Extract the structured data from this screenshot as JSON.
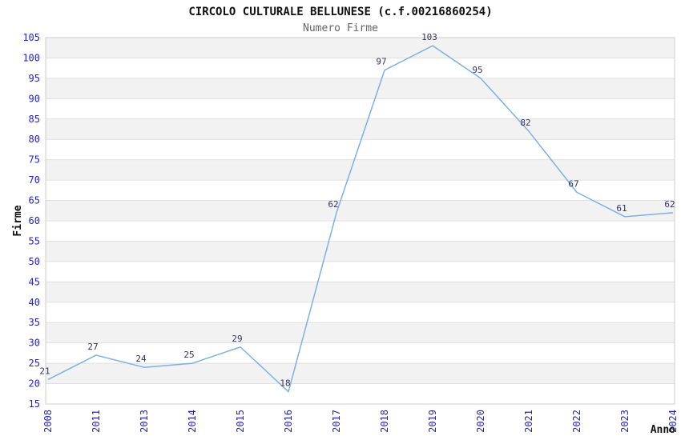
{
  "chart_data": {
    "type": "line",
    "title": "CIRCOLO CULTURALE BELLUNESE (c.f.00216860254)",
    "subtitle": "Numero Firme",
    "xlabel": "Anno",
    "ylabel": "Firme",
    "categories": [
      "2008",
      "2011",
      "2013",
      "2014",
      "2015",
      "2016",
      "2017",
      "2018",
      "2019",
      "2020",
      "2021",
      "2022",
      "2023",
      "2024"
    ],
    "values": [
      21,
      27,
      24,
      25,
      29,
      18,
      62,
      97,
      103,
      95,
      82,
      67,
      61,
      62
    ],
    "ylim": [
      15,
      105
    ],
    "ytick_step": 5,
    "grid": true,
    "legend_position": "none",
    "x_tick_rotation": -90,
    "colors": {
      "line": "#7CB0E6",
      "tick_label": "#2222CC",
      "data_label": "#333366",
      "band_fill": "#F2F2F2",
      "gridline": "#E0E0E0",
      "plot_border": "#CCCCCC",
      "title": "#111111",
      "subtitle": "#666666",
      "axis_label": "#111111",
      "plot_background": "#FFFFFF"
    }
  }
}
